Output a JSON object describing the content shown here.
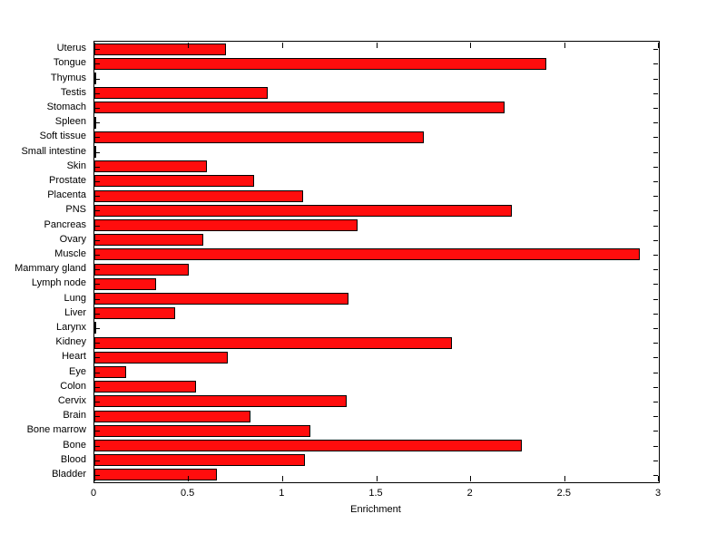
{
  "figure": {
    "background": "#ffffff",
    "bar_fill": "#ff0d0d",
    "bar_edge": "#000000",
    "axis_color": "#000000"
  },
  "chart_data": {
    "type": "bar",
    "orientation": "horizontal",
    "order": "top-to-bottom",
    "title": "",
    "xlabel": "Enrichment",
    "ylabel": "",
    "xlim": [
      0,
      3
    ],
    "xticks": [
      0,
      0.5,
      1,
      1.5,
      2,
      2.5,
      3
    ],
    "xtick_labels": [
      "0",
      "0.5",
      "1",
      "1.5",
      "2",
      "2.5",
      "3"
    ],
    "grid": false,
    "legend": null,
    "categories": [
      "Uterus",
      "Tongue",
      "Thymus",
      "Testis",
      "Stomach",
      "Spleen",
      "Soft tissue",
      "Small intestine",
      "Skin",
      "Prostate",
      "Placenta",
      "PNS",
      "Pancreas",
      "Ovary",
      "Muscle",
      "Mammary gland",
      "Lymph node",
      "Lung",
      "Liver",
      "Larynx",
      "Kidney",
      "Heart",
      "Eye",
      "Colon",
      "Cervix",
      "Brain",
      "Bone marrow",
      "Bone",
      "Blood",
      "Bladder"
    ],
    "values": [
      0.7,
      2.4,
      0.01,
      0.92,
      2.18,
      0.01,
      1.75,
      0.01,
      0.6,
      0.85,
      1.11,
      2.22,
      1.4,
      0.58,
      2.9,
      0.5,
      0.33,
      1.35,
      0.43,
      0.01,
      1.9,
      0.71,
      0.17,
      0.54,
      1.34,
      0.83,
      1.15,
      2.27,
      1.12,
      0.65
    ]
  }
}
